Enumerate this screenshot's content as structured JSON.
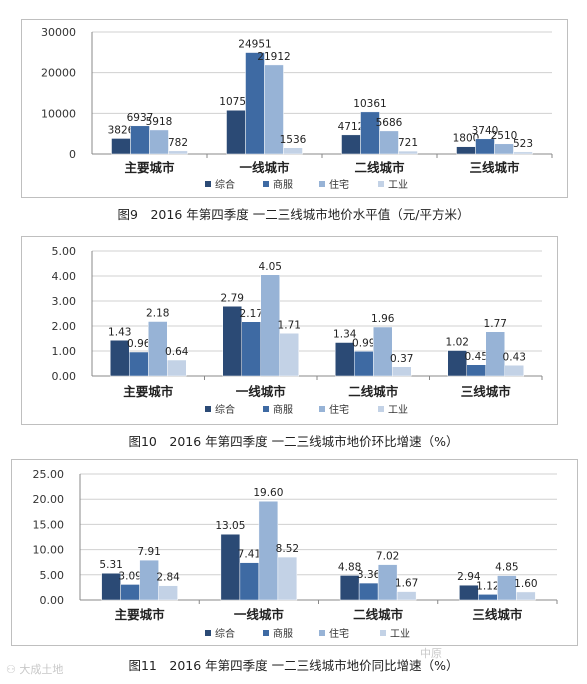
{
  "colors": {
    "综合": "#2b4a75",
    "商服": "#3e6aa3",
    "住宅": "#97b3d6",
    "工业": "#c3d2e6"
  },
  "watermark": {
    "left": "⚇ 大成土地",
    "right": "中原"
  },
  "chart_data": [
    {
      "type": "bar",
      "caption": "图9　2016 年第四季度  一二三线城市地价水平值（元/平方米）",
      "categories": [
        "主要城市",
        "一线城市",
        "二线城市",
        "三线城市"
      ],
      "series": [
        {
          "name": "综合",
          "values": [
            3826,
            10759,
            4712,
            1800
          ]
        },
        {
          "name": "商服",
          "values": [
            6937,
            24951,
            10361,
            3740
          ]
        },
        {
          "name": "住宅",
          "values": [
            5918,
            21912,
            5686,
            2510
          ]
        },
        {
          "name": "工业",
          "values": [
            782,
            1536,
            721,
            523
          ]
        }
      ],
      "data_labels": [
        [
          "3826",
          "10759",
          "4712",
          "1800"
        ],
        [
          "6937",
          "24951",
          "10361",
          "3740"
        ],
        [
          "5918",
          "21912",
          "5686",
          "2510"
        ],
        [
          "782",
          "1536",
          "721",
          "523"
        ]
      ],
      "yticks": [
        "0",
        "10000",
        "20000",
        "30000"
      ],
      "ylim": [
        0,
        30000
      ],
      "grid": true,
      "legend": "bottom"
    },
    {
      "type": "bar",
      "caption": "图10　2016 年第四季度  一二三线城市地价环比增速（%）",
      "categories": [
        "主要城市",
        "一线城市",
        "二线城市",
        "三线城市"
      ],
      "series": [
        {
          "name": "综合",
          "values": [
            1.43,
            2.79,
            1.34,
            1.02
          ]
        },
        {
          "name": "商服",
          "values": [
            0.96,
            2.17,
            0.99,
            0.45
          ]
        },
        {
          "name": "住宅",
          "values": [
            2.18,
            4.05,
            1.96,
            1.77
          ]
        },
        {
          "name": "工业",
          "values": [
            0.64,
            1.71,
            0.37,
            0.43
          ]
        }
      ],
      "data_labels": [
        [
          "1.43",
          "2.79",
          "1.34",
          "1.02"
        ],
        [
          "0.96",
          "2.17",
          "0.99",
          "0.45"
        ],
        [
          "2.18",
          "4.05",
          "1.96",
          "1.77"
        ],
        [
          "0.64",
          "1.71",
          "0.37",
          "0.43"
        ]
      ],
      "yticks": [
        "0.00",
        "1.00",
        "2.00",
        "3.00",
        "4.00",
        "5.00"
      ],
      "ylim": [
        0,
        5
      ],
      "grid": true,
      "legend": "bottom"
    },
    {
      "type": "bar",
      "caption": "图11　2016 年第四季度  一二三线城市地价同比增速（%）",
      "categories": [
        "主要城市",
        "一线城市",
        "二线城市",
        "三线城市"
      ],
      "series": [
        {
          "name": "综合",
          "values": [
            5.31,
            13.05,
            4.88,
            2.94
          ]
        },
        {
          "name": "商服",
          "values": [
            3.09,
            7.41,
            3.36,
            1.12
          ]
        },
        {
          "name": "住宅",
          "values": [
            7.91,
            19.6,
            7.02,
            4.85
          ]
        },
        {
          "name": "工业",
          "values": [
            2.84,
            8.52,
            1.67,
            1.6
          ]
        }
      ],
      "data_labels": [
        [
          "5.31",
          "13.05",
          "4.88",
          "2.94"
        ],
        [
          "3.09",
          "7.41",
          "3.36",
          "1.12"
        ],
        [
          "7.91",
          "19.60",
          "7.02",
          "4.85"
        ],
        [
          "2.84",
          "8.52",
          "1.67",
          "1.60"
        ]
      ],
      "yticks": [
        "0.00",
        "5.00",
        "10.00",
        "15.00",
        "20.00",
        "25.00"
      ],
      "ylim": [
        0,
        25
      ],
      "grid": true,
      "legend": "bottom"
    }
  ]
}
